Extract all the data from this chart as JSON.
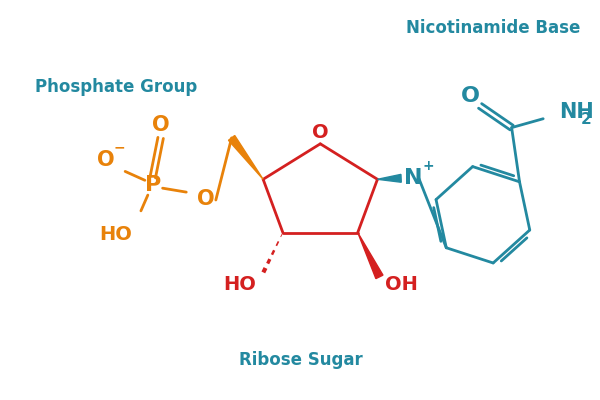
{
  "background_color": "#ffffff",
  "teal_color": "#2389a0",
  "orange_color": "#e8820a",
  "red_color": "#d42020",
  "label_phosphate": "Phosphate Group",
  "label_ribose": "Ribose Sugar",
  "label_nicotinamide": "Nicotinamide Base",
  "figsize": [
    6.0,
    4.0
  ],
  "dpi": 100
}
